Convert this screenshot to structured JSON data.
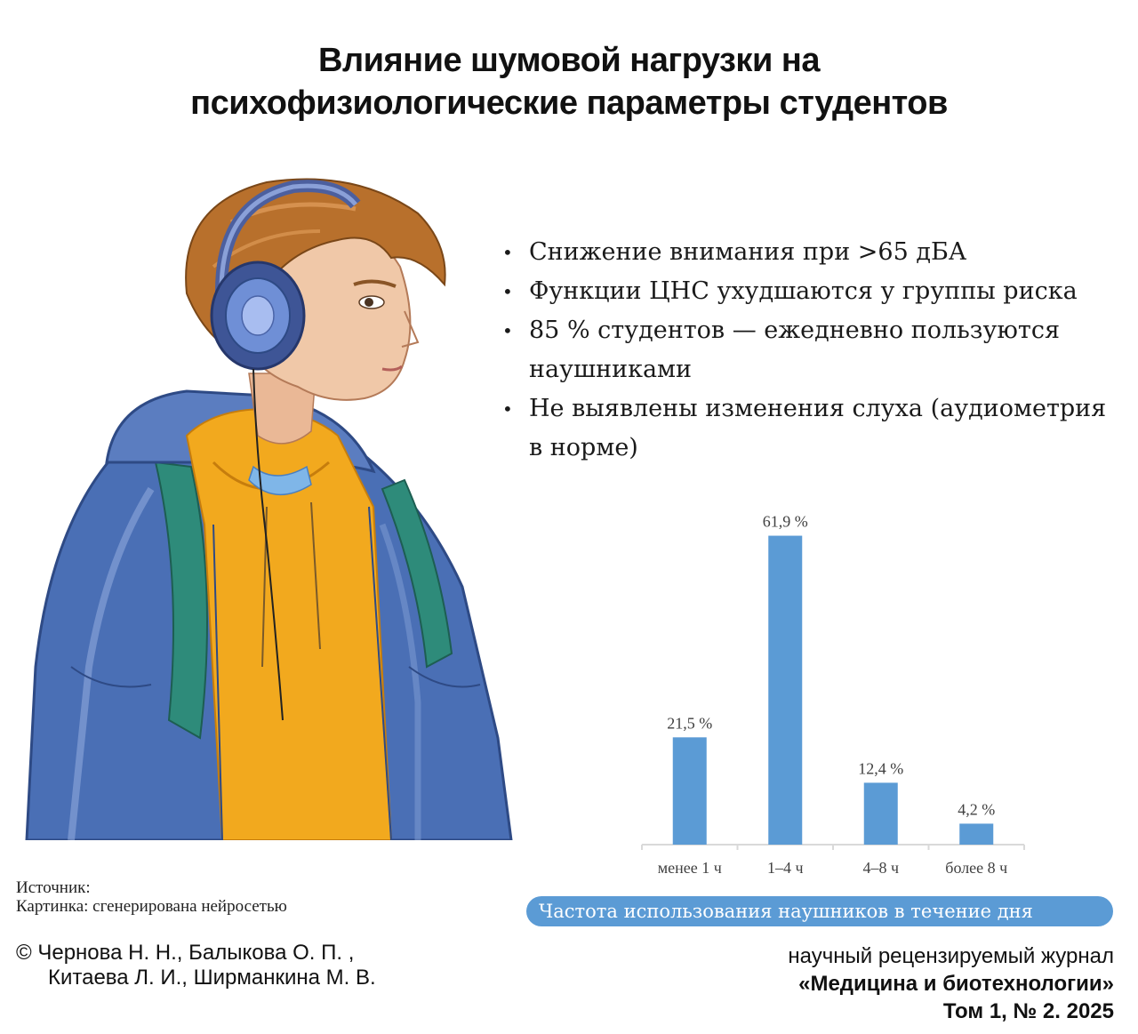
{
  "title": {
    "line1": "Влияние шумовой нагрузки на",
    "line2": "психофизиологические параметры студентов"
  },
  "bullets": [
    "Снижение внимания при >65 дБА",
    "Функции ЦНС ухудшаются у группы риска",
    "85 % студентов — ежедневно пользуются наушниками",
    "Не выявлены изменения слуха (аудиометрия в норме)"
  ],
  "chart_data": {
    "type": "bar",
    "categories": [
      "менее 1 ч",
      "1–4 ч",
      "4–8 ч",
      "более 8 ч"
    ],
    "values": [
      21.5,
      61.9,
      12.4,
      4.2
    ],
    "data_labels": [
      "21,5 %",
      "61,9 %",
      "12,4 %",
      "4,2 %"
    ],
    "title": "Частота использования наушников в течение дня",
    "xlabel": "",
    "ylabel": "",
    "ylim": [
      0,
      62
    ],
    "grid": false,
    "bar_color": "#5b9bd5"
  },
  "source": {
    "label": "Источник:",
    "text": "Картинка: сгенерирована нейросетью"
  },
  "authors": {
    "line1": "© Чернова Н. Н., Балыкова О. П. ,",
    "line2": "Китаева Л. И., Ширманкина М. В."
  },
  "journal": {
    "line1": "научный рецензируемый журнал",
    "line2": "«Медицина и биотехнологии»",
    "line3": "Том 1, № 2. 2025"
  },
  "colors": {
    "accent": "#5b9bd5",
    "jacket": "#4a6fb5",
    "hoodie": "#f2a91e",
    "backpack": "#2e8b7a",
    "hair": "#b8702c",
    "skin": "#f0c8a8"
  },
  "illustration": {
    "icon": "student-with-headphones-illustration"
  }
}
